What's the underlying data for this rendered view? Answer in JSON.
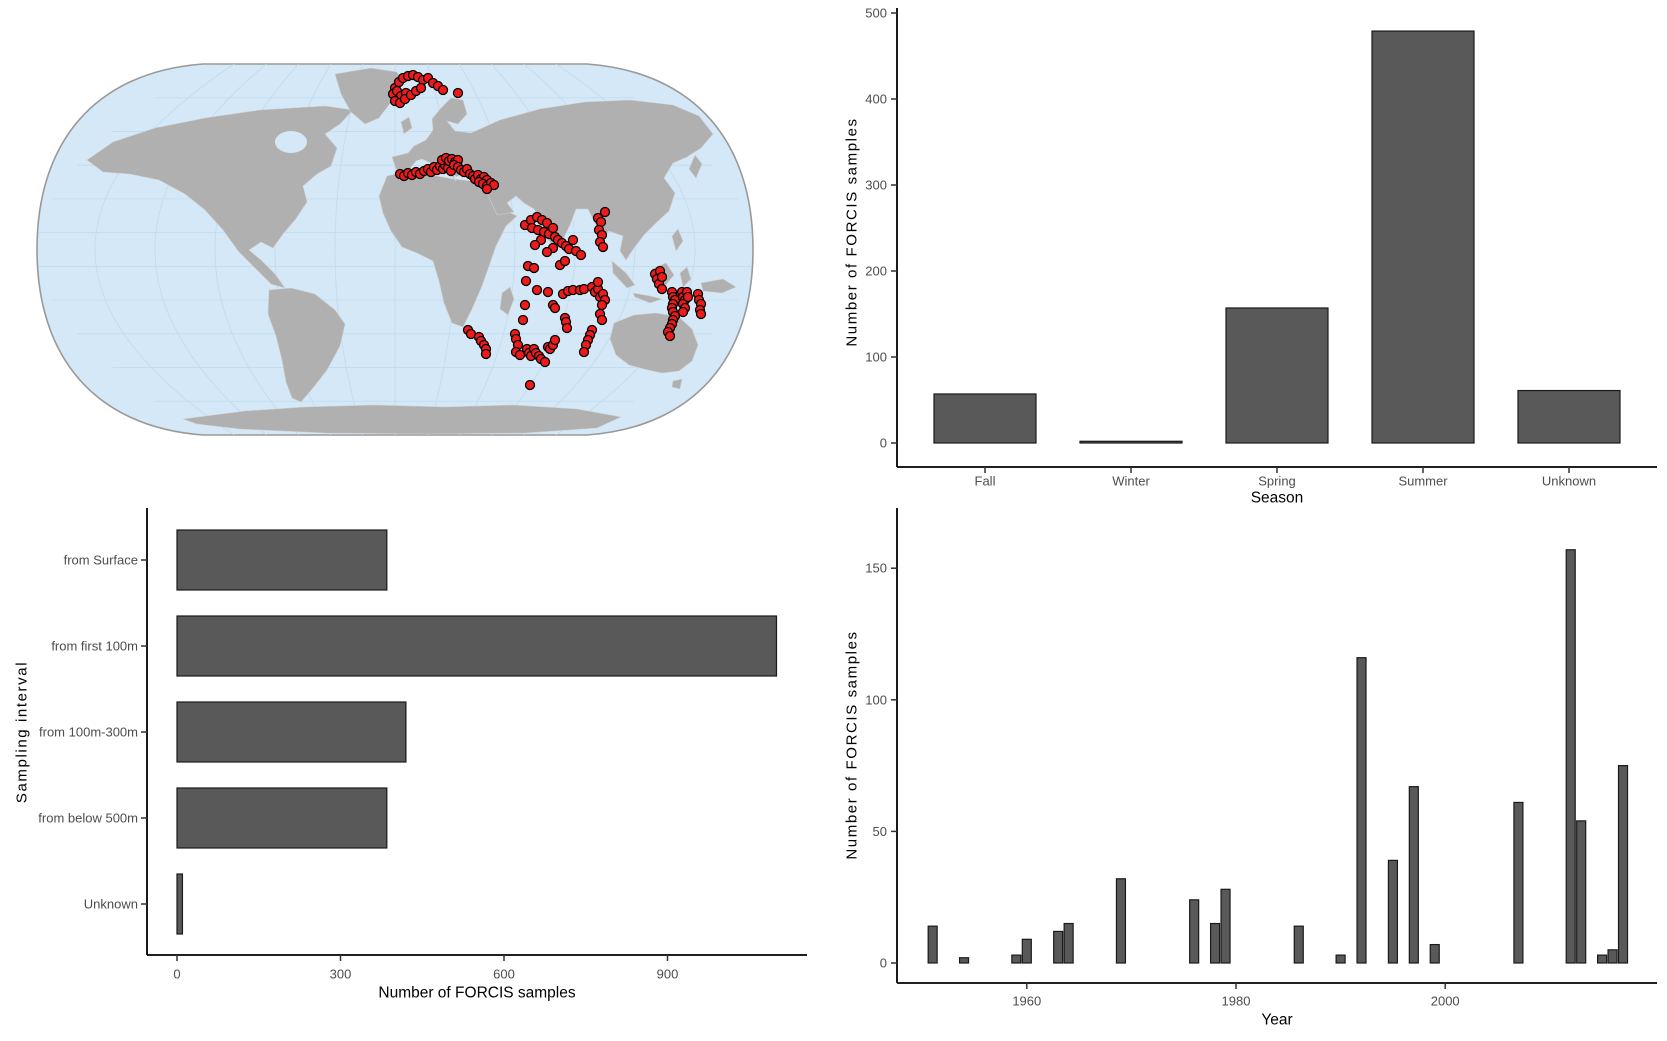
{
  "figure": {
    "kind": "four-panel statistical figure",
    "background": "#ffffff"
  },
  "colors": {
    "bar_fill": "#595959",
    "bar_stroke": "#1a1a1a",
    "tick_text": "#4d4d4d",
    "title_text": "#000000",
    "ocean": "#d4e8f7",
    "land": "#b0b0b0",
    "graticule": "#bfdbef",
    "globe_outline": "#999999",
    "point_fill": "#ee1b1b",
    "point_stroke": "#000000"
  },
  "chart_data": {
    "season": {
      "type": "bar",
      "categories": [
        "Fall",
        "Winter",
        "Spring",
        "Summer",
        "Unknown"
      ],
      "values": [
        57,
        2,
        157,
        479,
        61
      ],
      "xlabel": "Season",
      "ylabel": "Number of FORCIS samples",
      "yticks": [
        0,
        100,
        200,
        300,
        400,
        500
      ],
      "ylim": [
        0,
        500
      ],
      "grid": false,
      "legend": "none"
    },
    "sampling_interval": {
      "type": "bar-horizontal",
      "categories": [
        "from Surface",
        "from first 100m",
        "from 100m-300m",
        "from below 500m",
        "Unknown"
      ],
      "values": [
        385,
        1100,
        420,
        385,
        10
      ],
      "xticks": [
        0,
        300,
        600,
        900
      ],
      "xlim": [
        0,
        1160
      ],
      "xlabel": "Number of FORCIS samples",
      "ylabel": "Sampling interval",
      "grid": false,
      "legend": "none"
    },
    "year": {
      "type": "bar",
      "xlabel": "Year",
      "ylabel": "Number of FORCIS samples",
      "xticks": [
        1960,
        1980,
        2000
      ],
      "yticks": [
        0,
        50,
        100,
        150
      ],
      "ylim": [
        0,
        165
      ],
      "grid": false,
      "legend": "none",
      "years": [
        1951,
        1954,
        1959,
        1960,
        1963,
        1964,
        1969,
        1976,
        1978,
        1979,
        1986,
        1990,
        1992,
        1995,
        1997,
        1999,
        2007,
        2012,
        2013,
        2015,
        2016,
        2017
      ],
      "values": [
        14,
        2,
        3,
        9,
        12,
        15,
        32,
        24,
        15,
        28,
        14,
        3,
        116,
        39,
        67,
        7,
        61,
        157,
        54,
        3,
        5,
        75
      ]
    },
    "map": {
      "type": "scatter-map",
      "projection": "robinson-like world map",
      "description": "Locations of FORCIS samples (red points)",
      "clusters": [
        {
          "name": "north-atlantic-iceland",
          "points": [
            [
              360,
              26
            ],
            [
              364,
              20
            ],
            [
              368,
              16
            ],
            [
              373,
              14
            ],
            [
              378,
              13
            ],
            [
              383,
              15
            ],
            [
              388,
              18
            ],
            [
              393,
              16
            ],
            [
              398,
              21
            ],
            [
              403,
              24
            ],
            [
              358,
              32
            ],
            [
              362,
              29
            ],
            [
              366,
              34
            ],
            [
              371,
              31
            ],
            [
              360,
              39
            ],
            [
              365,
              41
            ],
            [
              370,
              37
            ],
            [
              376,
              33
            ],
            [
              381,
              29
            ],
            [
              386,
              26
            ],
            [
              408,
              28
            ],
            [
              423,
              31
            ]
          ]
        },
        {
          "name": "mediterranean",
          "points": [
            [
              365,
              112
            ],
            [
              369,
              114
            ],
            [
              373,
              111
            ],
            [
              377,
              113
            ],
            [
              381,
              110
            ],
            [
              385,
              112
            ],
            [
              389,
              109
            ],
            [
              393,
              107
            ],
            [
              396,
              110
            ],
            [
              399,
              105
            ],
            [
              402,
              108
            ],
            [
              405,
              104
            ],
            [
              408,
              107
            ],
            [
              410,
              103
            ],
            [
              413,
              106
            ],
            [
              416,
              109
            ],
            [
              407,
              98
            ],
            [
              411,
              96
            ],
            [
              414,
              99
            ],
            [
              417,
              97
            ],
            [
              420,
              100
            ],
            [
              423,
              98
            ],
            [
              419,
              103
            ],
            [
              423,
              105
            ],
            [
              426,
              108
            ],
            [
              429,
              110
            ],
            [
              432,
              107
            ],
            [
              435,
              112
            ],
            [
              438,
              114
            ],
            [
              440,
              117
            ],
            [
              443,
              113
            ],
            [
              446,
              117
            ],
            [
              449,
              115
            ],
            [
              452,
              118
            ],
            [
              444,
              120
            ],
            [
              448,
              122
            ],
            [
              452,
              124
            ],
            [
              456,
              121
            ],
            [
              459,
              123
            ],
            [
              452,
              127
            ]
          ]
        },
        {
          "name": "arabian-sea",
          "points": [
            [
              490,
              163
            ],
            [
              496,
              158
            ],
            [
              502,
              155
            ],
            [
              507,
              158
            ],
            [
              512,
              161
            ],
            [
              497,
              166
            ],
            [
              503,
              168
            ],
            [
              509,
              170
            ],
            [
              514,
              172
            ],
            [
              518,
              166
            ],
            [
              520,
              175
            ],
            [
              523,
              178
            ],
            [
              527,
              181
            ],
            [
              531,
              184
            ],
            [
              534,
              187
            ],
            [
              538,
              178
            ],
            [
              541,
              189
            ],
            [
              546,
              193
            ],
            [
              518,
              186
            ],
            [
              512,
              190
            ],
            [
              525,
              203
            ],
            [
              530,
              199
            ],
            [
              506,
              178
            ],
            [
              500,
              183
            ]
          ]
        },
        {
          "name": "bay-of-bengal",
          "points": [
            [
              563,
              156
            ],
            [
              566,
              160
            ],
            [
              564,
              168
            ],
            [
              567,
              173
            ],
            [
              565,
              180
            ],
            [
              568,
              185
            ],
            [
              570,
              150
            ]
          ]
        },
        {
          "name": "equatorial-indian-ocean",
          "points": [
            [
              493,
              204
            ],
            [
              499,
              206
            ],
            [
              491,
              219
            ],
            [
              502,
              228
            ],
            [
              513,
              230
            ],
            [
              528,
              232
            ],
            [
              533,
              229
            ],
            [
              538,
              228
            ],
            [
              545,
              228
            ],
            [
              549,
              227
            ],
            [
              557,
              225
            ],
            [
              560,
              230
            ],
            [
              563,
              227
            ],
            [
              565,
              235
            ],
            [
              568,
              232
            ],
            [
              570,
              238
            ],
            [
              567,
              243
            ],
            [
              565,
              252
            ],
            [
              567,
              258
            ],
            [
              563,
              220
            ]
          ]
        },
        {
          "name": "eastern-indian-ocean",
          "points": [
            [
              620,
              212
            ],
            [
              622,
              217
            ],
            [
              624,
              222
            ],
            [
              625,
              209
            ],
            [
              627,
              215
            ],
            [
              627,
              227
            ],
            [
              637,
              230
            ],
            [
              638,
              235
            ],
            [
              640,
              238
            ],
            [
              638,
              242
            ],
            [
              637,
              246
            ],
            [
              638,
              250
            ],
            [
              640,
              254
            ],
            [
              638,
              258
            ],
            [
              637,
              262
            ],
            [
              635,
              266
            ],
            [
              633,
              270
            ],
            [
              635,
              274
            ],
            [
              647,
              230
            ],
            [
              648,
              235
            ],
            [
              650,
              238
            ],
            [
              648,
              242
            ],
            [
              650,
              246
            ],
            [
              648,
              250
            ],
            [
              652,
              230
            ],
            [
              653,
              235
            ],
            [
              663,
              232
            ],
            [
              664,
              238
            ],
            [
              666,
              242
            ],
            [
              665,
              248
            ],
            [
              666,
              252
            ]
          ]
        },
        {
          "name": "southern-indian-ocean",
          "points": [
            [
              433,
              268
            ],
            [
              436,
              272
            ],
            [
              444,
              275
            ],
            [
              446,
              279
            ],
            [
              449,
              283
            ],
            [
              451,
              287
            ],
            [
              451,
              292
            ],
            [
              480,
              272
            ],
            [
              481,
              277
            ],
            [
              483,
              283
            ],
            [
              481,
              290
            ],
            [
              485,
              293
            ],
            [
              488,
              258
            ],
            [
              490,
              243
            ],
            [
              492,
              287
            ],
            [
              494,
              291
            ],
            [
              496,
              294
            ],
            [
              499,
              287
            ],
            [
              501,
              291
            ],
            [
              504,
              294
            ],
            [
              506,
              297
            ],
            [
              510,
              300
            ],
            [
              513,
              285
            ],
            [
              515,
              287
            ],
            [
              518,
              283
            ],
            [
              520,
              278
            ],
            [
              518,
              243
            ],
            [
              520,
              246
            ],
            [
              530,
              256
            ],
            [
              531,
              260
            ],
            [
              532,
              266
            ],
            [
              557,
              268
            ],
            [
              555,
              273
            ],
            [
              553,
              278
            ],
            [
              551,
              283
            ],
            [
              549,
              290
            ],
            [
              495,
              323
            ]
          ]
        }
      ]
    }
  }
}
